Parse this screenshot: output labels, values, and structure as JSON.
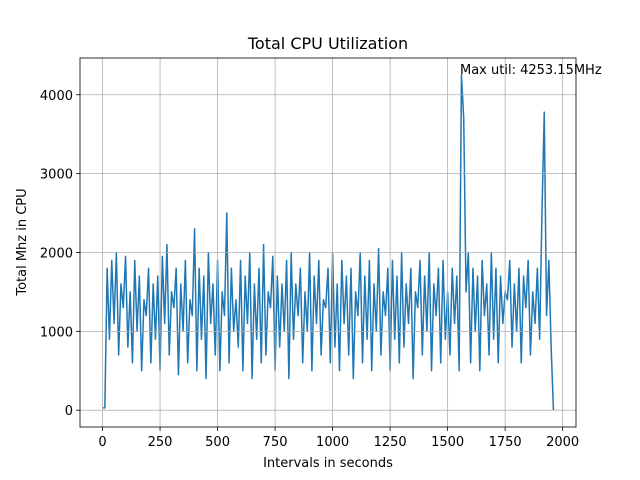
{
  "chart_data": {
    "type": "line",
    "title": "Total CPU Utilization",
    "x_label": "Intervals in seconds",
    "y_label": "Total Mhz in CPU",
    "annotation": "Max util: 4253.15MHz",
    "grid": true,
    "xlim": [
      -98,
      2058
    ],
    "xticks": [
      0,
      250,
      500,
      750,
      1000,
      1250,
      1500,
      1750,
      2000
    ],
    "ylim": [
      -213,
      4466
    ],
    "yticks": [
      0,
      1000,
      2000,
      3000,
      4000
    ],
    "x": [
      0,
      10,
      20,
      30,
      40,
      50,
      60,
      70,
      80,
      90,
      100,
      110,
      120,
      130,
      140,
      150,
      160,
      170,
      180,
      190,
      200,
      210,
      220,
      230,
      240,
      250,
      260,
      270,
      280,
      290,
      300,
      310,
      320,
      330,
      340,
      350,
      360,
      370,
      380,
      390,
      400,
      410,
      420,
      430,
      440,
      450,
      460,
      470,
      480,
      490,
      500,
      510,
      520,
      530,
      540,
      550,
      560,
      570,
      580,
      590,
      600,
      610,
      620,
      630,
      640,
      650,
      660,
      670,
      680,
      690,
      700,
      710,
      720,
      730,
      740,
      750,
      760,
      770,
      780,
      790,
      800,
      810,
      820,
      830,
      840,
      850,
      860,
      870,
      880,
      890,
      900,
      910,
      920,
      930,
      940,
      950,
      960,
      970,
      980,
      990,
      1000,
      1010,
      1020,
      1030,
      1040,
      1050,
      1060,
      1070,
      1080,
      1090,
      1100,
      1110,
      1120,
      1130,
      1140,
      1150,
      1160,
      1170,
      1180,
      1190,
      1200,
      1210,
      1220,
      1230,
      1240,
      1250,
      1260,
      1270,
      1280,
      1290,
      1300,
      1310,
      1320,
      1330,
      1340,
      1350,
      1360,
      1370,
      1380,
      1390,
      1400,
      1410,
      1420,
      1430,
      1440,
      1450,
      1460,
      1470,
      1480,
      1490,
      1500,
      1510,
      1520,
      1530,
      1540,
      1550,
      1560,
      1570,
      1580,
      1590,
      1600,
      1610,
      1620,
      1630,
      1640,
      1650,
      1660,
      1670,
      1680,
      1690,
      1700,
      1710,
      1720,
      1730,
      1740,
      1750,
      1760,
      1770,
      1780,
      1790,
      1800,
      1810,
      1820,
      1830,
      1840,
      1850,
      1860,
      1870,
      1880,
      1890,
      1900,
      1910,
      1920,
      1930,
      1940,
      1950,
      1960
    ],
    "series": [
      {
        "name": "Total CPU",
        "color": "#1f77b4",
        "values": [
          30,
          30,
          1800,
          900,
          1900,
          1100,
          2000,
          700,
          1600,
          1300,
          1950,
          800,
          1500,
          600,
          1900,
          1000,
          1700,
          500,
          1400,
          1200,
          1800,
          600,
          1600,
          900,
          1700,
          500,
          1950,
          1100,
          2100,
          700,
          1500,
          1300,
          1800,
          450,
          1600,
          1000,
          1900,
          600,
          1400,
          1200,
          2300,
          500,
          1800,
          900,
          1700,
          400,
          2000,
          1100,
          1600,
          700,
          1900,
          500,
          1500,
          1200,
          2500,
          600,
          1800,
          1000,
          1400,
          800,
          1900,
          500,
          1700,
          1100,
          2000,
          400,
          1600,
          900,
          1800,
          600,
          2100,
          700,
          1500,
          1300,
          1950,
          500,
          1700,
          800,
          1600,
          1000,
          1900,
          400,
          2000,
          900,
          1600,
          1200,
          1800,
          600,
          1500,
          1000,
          2000,
          500,
          1700,
          1100,
          1900,
          700,
          1400,
          1300,
          1800,
          600,
          2000,
          800,
          1600,
          500,
          1900,
          1100,
          1700,
          700,
          1800,
          400,
          1500,
          1200,
          2000,
          600,
          1700,
          900,
          1900,
          500,
          1600,
          1000,
          2050,
          700,
          1500,
          1200,
          1800,
          500,
          1900,
          900,
          1700,
          600,
          2000,
          800,
          1600,
          1100,
          1800,
          400,
          1500,
          1300,
          1900,
          700,
          1700,
          1000,
          2000,
          500,
          1600,
          1200,
          1800,
          600,
          1900,
          900,
          1500,
          700,
          1800,
          1100,
          1700,
          500,
          4253.15,
          3700,
          1500,
          2000,
          600,
          1800,
          1000,
          1700,
          500,
          1900,
          1200,
          1600,
          700,
          2000,
          900,
          1800,
          600,
          1700,
          1100,
          1500,
          1400,
          1900,
          800,
          1600,
          1000,
          1800,
          600,
          1700,
          1300,
          1900,
          700,
          1500,
          1100,
          1800,
          900,
          2500,
          3780,
          1200,
          1900,
          800,
          0
        ]
      }
    ]
  }
}
